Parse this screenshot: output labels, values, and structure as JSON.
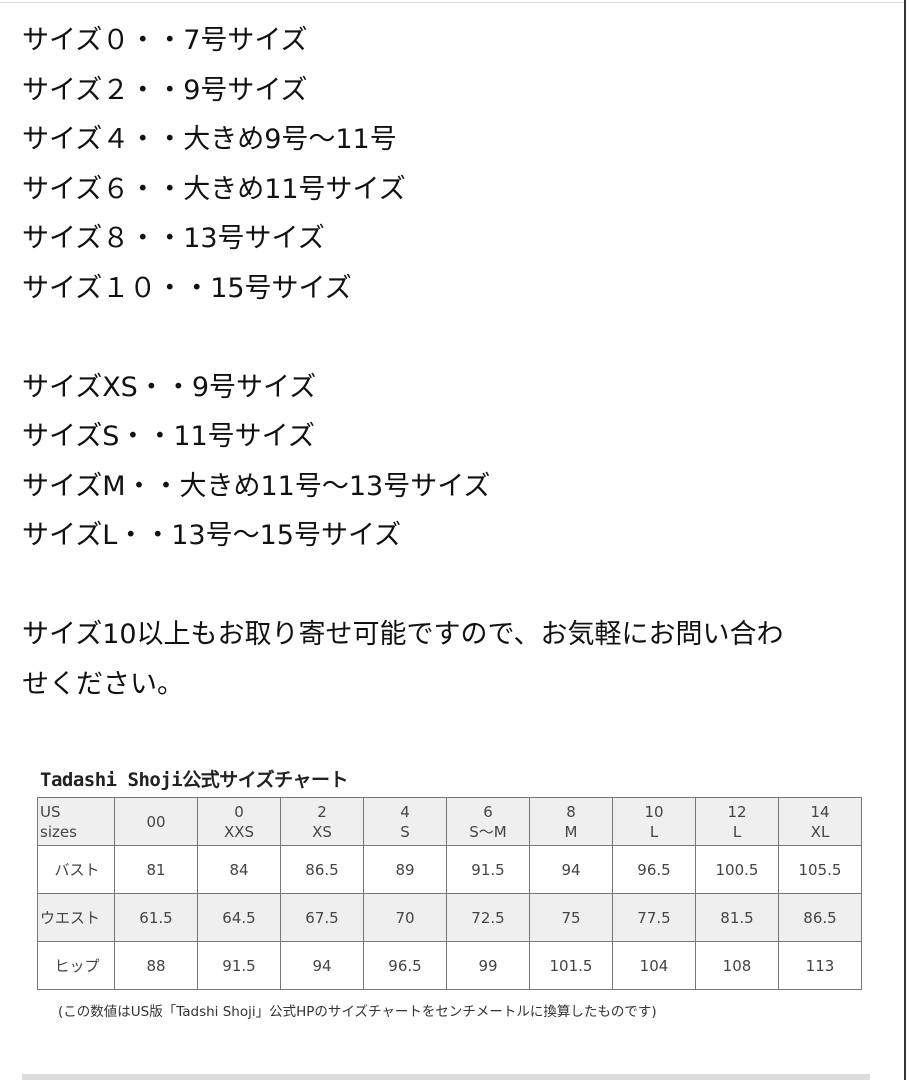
{
  "lines": [
    "サイズ０・・7号サイズ",
    "サイズ２・・9号サイズ",
    "サイズ４・・大きめ9号～11号",
    "サイズ６・・大きめ11号サイズ",
    "サイズ８・・13号サイズ",
    "サイズ１０・・15号サイズ"
  ],
  "lines2": [
    "サイズXS・・9号サイズ",
    "サイズS・・11号サイズ",
    "サイズM・・大きめ11号～13号サイズ",
    "サイズL・・13号～15号サイズ"
  ],
  "paragraph": [
    "サイズ10以上もお取り寄せ可能ですので、お気軽にお問い合わ",
    "せください。"
  ],
  "chart": {
    "title": "Tadashi Shoji公式サイズチャート",
    "header_label": [
      "US",
      "sizes"
    ],
    "sizes": [
      [
        "00",
        ""
      ],
      [
        "0",
        "XXS"
      ],
      [
        "2",
        "XS"
      ],
      [
        "4",
        "S"
      ],
      [
        "6",
        "S～M"
      ],
      [
        "8",
        "M"
      ],
      [
        "10",
        "L"
      ],
      [
        "12",
        "L"
      ],
      [
        "14",
        "XL"
      ]
    ],
    "rows": [
      {
        "label": "バスト",
        "values": [
          "81",
          "84",
          "86.5",
          "89",
          "91.5",
          "94",
          "96.5",
          "100.5",
          "105.5"
        ]
      },
      {
        "label": "ウエスト",
        "values": [
          "61.5",
          "64.5",
          "67.5",
          "70",
          "72.5",
          "75",
          "77.5",
          "81.5",
          "86.5"
        ]
      },
      {
        "label": "ヒップ",
        "values": [
          "88",
          "91.5",
          "94",
          "96.5",
          "99",
          "101.5",
          "104",
          "108",
          "113"
        ]
      }
    ],
    "note": "(この数値はUS版「Tadshi Shoji」公式HPのサイズチャートをセンチメートルに換算したものです)"
  }
}
